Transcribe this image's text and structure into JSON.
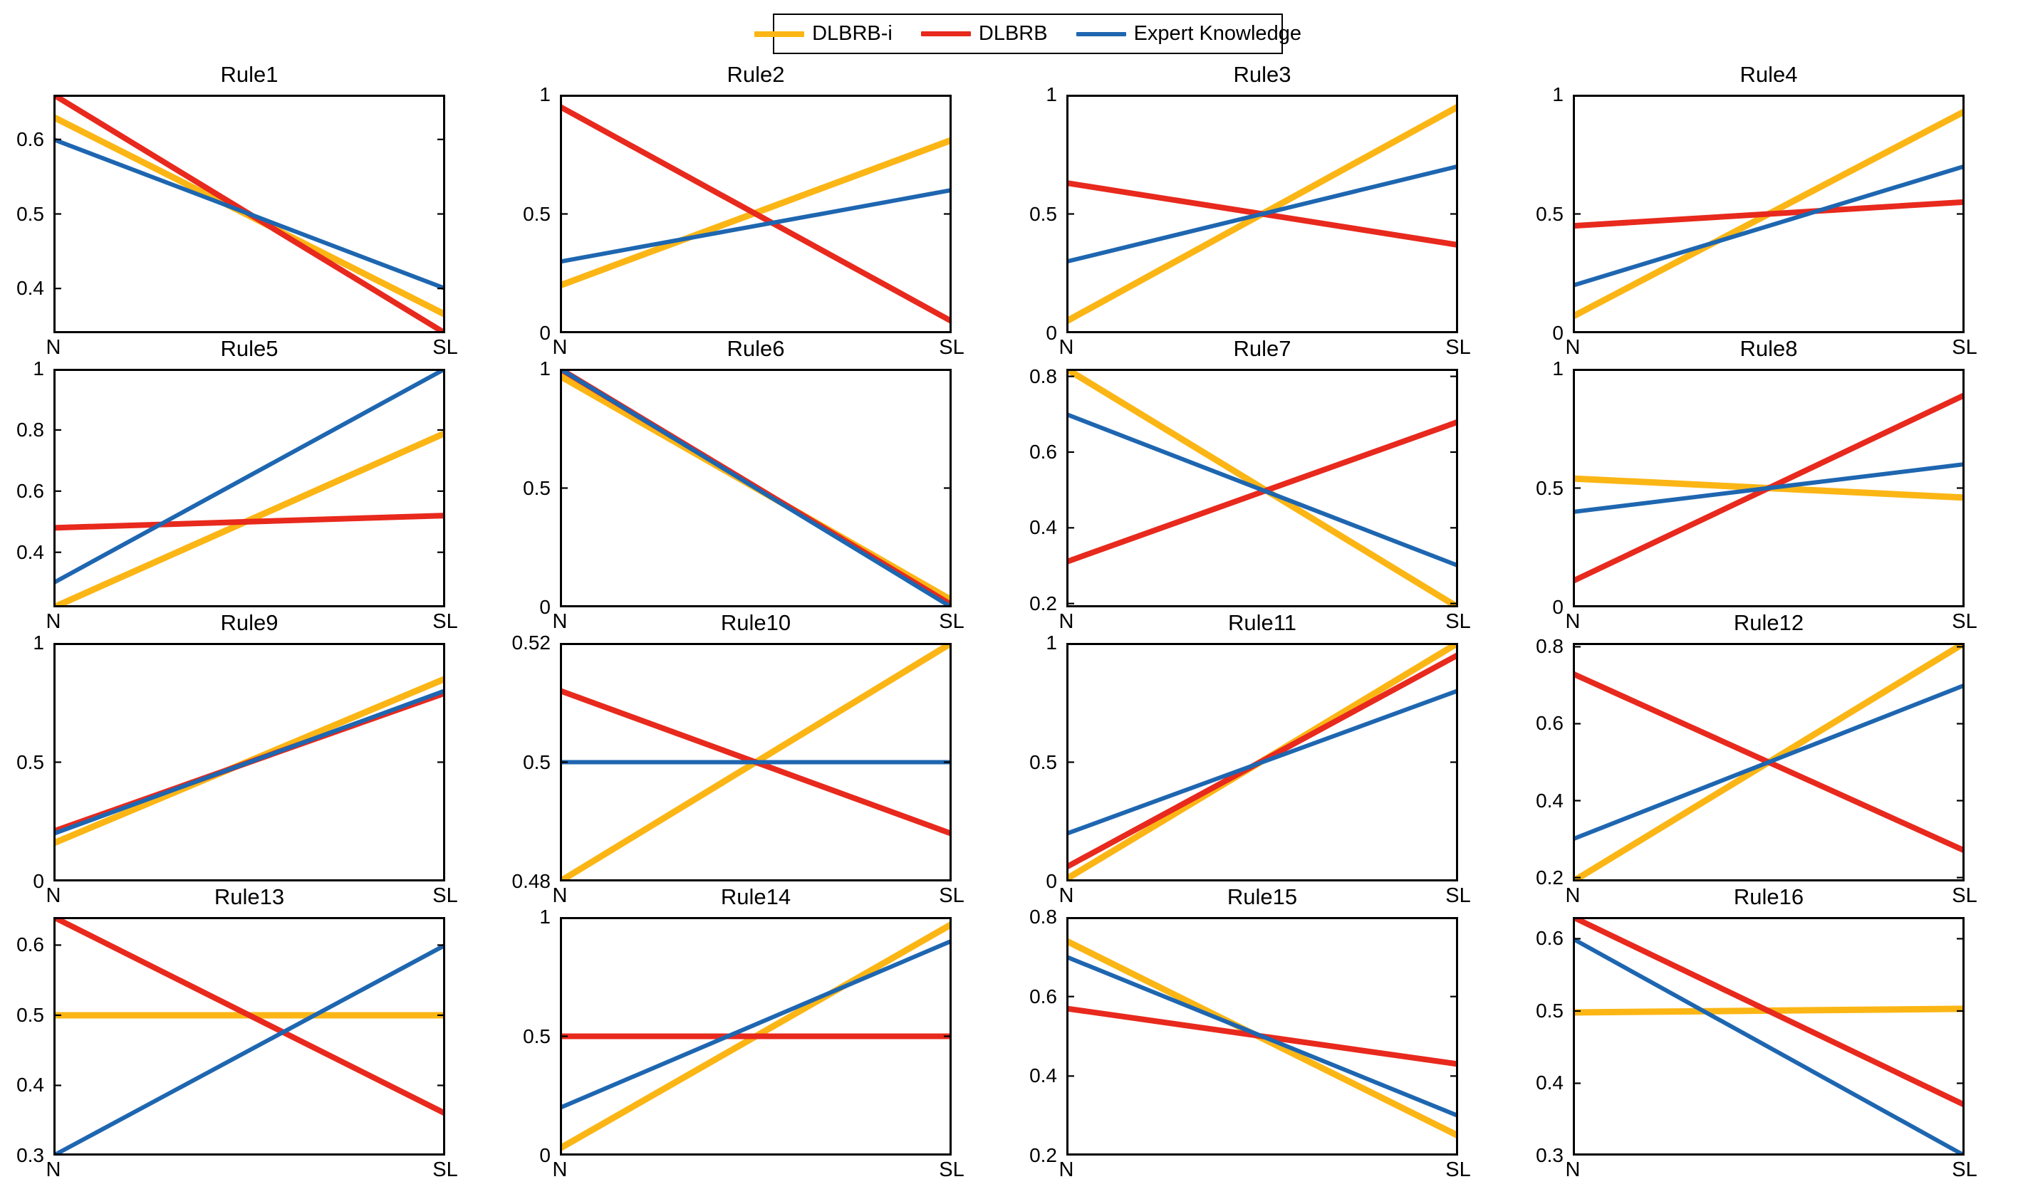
{
  "figure": {
    "background": "#ffffff"
  },
  "legend": {
    "items": [
      {
        "label": "DLBRB-i",
        "color": "#FBB615",
        "thickness": 8
      },
      {
        "label": "DLBRB",
        "color": "#E8291D",
        "thickness": 7
      },
      {
        "label": "Expert Knowledge",
        "color": "#1E66B0",
        "thickness": 6
      }
    ]
  },
  "chart_data": {
    "type": "line",
    "x_categories": [
      "N",
      "SL"
    ],
    "grid": false,
    "legend_position": "top-center",
    "subplots": [
      {
        "title": "Rule1",
        "ylim": [
          0.34,
          0.66
        ],
        "yticks": [
          0.4,
          0.5,
          0.6
        ],
        "series": [
          {
            "name": "DLBRB-i",
            "values": [
              0.63,
              0.365
            ]
          },
          {
            "name": "DLBRB",
            "values": [
              0.66,
              0.34
            ]
          },
          {
            "name": "Expert Knowledge",
            "values": [
              0.6,
              0.4
            ]
          }
        ]
      },
      {
        "title": "Rule2",
        "ylim": [
          0,
          1
        ],
        "yticks": [
          0,
          0.5,
          1
        ],
        "series": [
          {
            "name": "DLBRB-i",
            "values": [
              0.2,
              0.81
            ]
          },
          {
            "name": "DLBRB",
            "values": [
              0.95,
              0.05
            ]
          },
          {
            "name": "Expert Knowledge",
            "values": [
              0.3,
              0.6
            ]
          }
        ]
      },
      {
        "title": "Rule3",
        "ylim": [
          0,
          1
        ],
        "yticks": [
          0,
          0.5,
          1
        ],
        "series": [
          {
            "name": "DLBRB-i",
            "values": [
              0.05,
              0.95
            ]
          },
          {
            "name": "DLBRB",
            "values": [
              0.63,
              0.37
            ]
          },
          {
            "name": "Expert Knowledge",
            "values": [
              0.3,
              0.7
            ]
          }
        ]
      },
      {
        "title": "Rule4",
        "ylim": [
          0,
          1
        ],
        "yticks": [
          0,
          0.5,
          1
        ],
        "series": [
          {
            "name": "DLBRB-i",
            "values": [
              0.07,
              0.93
            ]
          },
          {
            "name": "DLBRB",
            "values": [
              0.45,
              0.55
            ]
          },
          {
            "name": "Expert Knowledge",
            "values": [
              0.2,
              0.7
            ]
          }
        ]
      },
      {
        "title": "Rule5",
        "ylim": [
          0.22,
          1
        ],
        "yticks": [
          0.4,
          0.6,
          0.8,
          1
        ],
        "series": [
          {
            "name": "DLBRB-i",
            "values": [
              0.22,
              0.79
            ]
          },
          {
            "name": "DLBRB",
            "values": [
              0.48,
              0.52
            ]
          },
          {
            "name": "Expert Knowledge",
            "values": [
              0.3,
              1.0
            ]
          }
        ]
      },
      {
        "title": "Rule6",
        "ylim": [
          0,
          1
        ],
        "yticks": [
          0,
          0.5,
          1
        ],
        "series": [
          {
            "name": "DLBRB-i",
            "values": [
              0.97,
              0.03
            ]
          },
          {
            "name": "DLBRB",
            "values": [
              1.0,
              0.01
            ]
          },
          {
            "name": "Expert Knowledge",
            "values": [
              1.0,
              0.0
            ]
          }
        ]
      },
      {
        "title": "Rule7",
        "ylim": [
          0.19,
          0.82
        ],
        "yticks": [
          0.2,
          0.4,
          0.6,
          0.8
        ],
        "series": [
          {
            "name": "DLBRB-i",
            "values": [
              0.82,
              0.19
            ]
          },
          {
            "name": "DLBRB",
            "values": [
              0.31,
              0.68
            ]
          },
          {
            "name": "Expert Knowledge",
            "values": [
              0.7,
              0.3
            ]
          }
        ]
      },
      {
        "title": "Rule8",
        "ylim": [
          0,
          1
        ],
        "yticks": [
          0,
          0.5,
          1
        ],
        "series": [
          {
            "name": "DLBRB-i",
            "values": [
              0.54,
              0.46
            ]
          },
          {
            "name": "DLBRB",
            "values": [
              0.11,
              0.89
            ]
          },
          {
            "name": "Expert Knowledge",
            "values": [
              0.4,
              0.6
            ]
          }
        ]
      },
      {
        "title": "Rule9",
        "ylim": [
          0,
          1
        ],
        "yticks": [
          0,
          0.5,
          1
        ],
        "series": [
          {
            "name": "DLBRB-i",
            "values": [
              0.16,
              0.85
            ]
          },
          {
            "name": "DLBRB",
            "values": [
              0.21,
              0.79
            ]
          },
          {
            "name": "Expert Knowledge",
            "values": [
              0.2,
              0.8
            ]
          }
        ]
      },
      {
        "title": "Rule10",
        "ylim": [
          0.48,
          0.52
        ],
        "yticks": [
          0.48,
          0.5,
          0.52
        ],
        "series": [
          {
            "name": "DLBRB-i",
            "values": [
              0.48,
              0.52
            ]
          },
          {
            "name": "DLBRB",
            "values": [
              0.512,
              0.488
            ]
          },
          {
            "name": "Expert Knowledge",
            "values": [
              0.5,
              0.5
            ]
          }
        ]
      },
      {
        "title": "Rule11",
        "ylim": [
          0,
          1
        ],
        "yticks": [
          0,
          0.5,
          1
        ],
        "series": [
          {
            "name": "DLBRB-i",
            "values": [
              0.01,
              1.0
            ]
          },
          {
            "name": "DLBRB",
            "values": [
              0.06,
              0.95
            ]
          },
          {
            "name": "Expert Knowledge",
            "values": [
              0.2,
              0.8
            ]
          }
        ]
      },
      {
        "title": "Rule12",
        "ylim": [
          0.19,
          0.81
        ],
        "yticks": [
          0.2,
          0.4,
          0.6,
          0.8
        ],
        "series": [
          {
            "name": "DLBRB-i",
            "values": [
              0.19,
              0.81
            ]
          },
          {
            "name": "DLBRB",
            "values": [
              0.73,
              0.27
            ]
          },
          {
            "name": "Expert Knowledge",
            "values": [
              0.3,
              0.7
            ]
          }
        ]
      },
      {
        "title": "Rule13",
        "ylim": [
          0.3,
          0.64
        ],
        "yticks": [
          0.3,
          0.4,
          0.5,
          0.6
        ],
        "series": [
          {
            "name": "DLBRB-i",
            "values": [
              0.5,
              0.5
            ]
          },
          {
            "name": "DLBRB",
            "values": [
              0.64,
              0.36
            ]
          },
          {
            "name": "Expert Knowledge",
            "values": [
              0.3,
              0.6
            ]
          }
        ]
      },
      {
        "title": "Rule14",
        "ylim": [
          0,
          1
        ],
        "yticks": [
          0,
          0.5,
          1
        ],
        "series": [
          {
            "name": "DLBRB-i",
            "values": [
              0.03,
              0.97
            ]
          },
          {
            "name": "DLBRB",
            "values": [
              0.5,
              0.5
            ]
          },
          {
            "name": "Expert Knowledge",
            "values": [
              0.2,
              0.9
            ]
          }
        ]
      },
      {
        "title": "Rule15",
        "ylim": [
          0.2,
          0.8
        ],
        "yticks": [
          0.2,
          0.4,
          0.6,
          0.8
        ],
        "series": [
          {
            "name": "DLBRB-i",
            "values": [
              0.74,
              0.25
            ]
          },
          {
            "name": "DLBRB",
            "values": [
              0.57,
              0.43
            ]
          },
          {
            "name": "Expert Knowledge",
            "values": [
              0.7,
              0.3
            ]
          }
        ]
      },
      {
        "title": "Rule16",
        "ylim": [
          0.3,
          0.63
        ],
        "yticks": [
          0.3,
          0.4,
          0.5,
          0.6
        ],
        "series": [
          {
            "name": "DLBRB-i",
            "values": [
              0.498,
              0.503
            ]
          },
          {
            "name": "DLBRB",
            "values": [
              0.63,
              0.37
            ]
          },
          {
            "name": "Expert Knowledge",
            "values": [
              0.6,
              0.3
            ]
          }
        ]
      }
    ]
  }
}
